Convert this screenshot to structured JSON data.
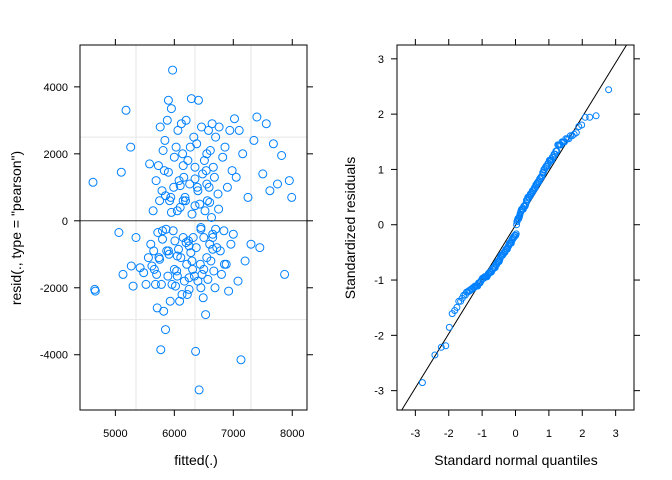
{
  "chart_data": [
    {
      "type": "scatter",
      "xlabel": "fitted(.)",
      "ylabel": "resid(., type = \"pearson\")",
      "xlim": [
        4400,
        8250
      ],
      "ylim": [
        -5650,
        5250
      ],
      "xticks": [
        5000,
        6000,
        7000,
        8000
      ],
      "yticks": [
        -4000,
        -2000,
        0,
        2000,
        4000
      ],
      "xtick_labels": [
        "5000",
        "6000",
        "7000",
        "8000"
      ],
      "ytick_labels": [
        "-4000",
        "-2000",
        "0",
        "2000",
        "4000"
      ],
      "reference_lines": {
        "horizontal": [
          0
        ],
        "grid_h": [
          2500,
          -2950
        ],
        "grid_v": [
          5350,
          6350,
          7300
        ]
      },
      "point_color": "#0080ff",
      "x": [
        4620,
        4650,
        4660,
        5060,
        5100,
        5130,
        5180,
        5260,
        5270,
        5300,
        5350,
        5420,
        5480,
        5520,
        5560,
        5580,
        5600,
        5620,
        5640,
        5650,
        5660,
        5680,
        5690,
        5700,
        5710,
        5720,
        5730,
        5740,
        5750,
        5760,
        5770,
        5780,
        5790,
        5800,
        5810,
        5820,
        5830,
        5840,
        5850,
        5860,
        5870,
        5880,
        5890,
        5900,
        5910,
        5920,
        5930,
        5940,
        5950,
        5960,
        5970,
        5980,
        5990,
        6000,
        6010,
        6020,
        6030,
        6040,
        6050,
        6060,
        6070,
        6080,
        6090,
        6100,
        6110,
        6120,
        6130,
        6140,
        6150,
        6160,
        6170,
        6180,
        6190,
        6200,
        6210,
        6220,
        6230,
        6240,
        6250,
        6260,
        6270,
        6280,
        6290,
        6300,
        6310,
        6320,
        6330,
        6340,
        6350,
        6360,
        6370,
        6380,
        6390,
        6400,
        6410,
        6420,
        6430,
        6440,
        6450,
        6460,
        6470,
        6480,
        6490,
        6500,
        6510,
        6520,
        6530,
        6540,
        6550,
        6560,
        6570,
        6580,
        6590,
        6600,
        6610,
        6620,
        6630,
        6640,
        6650,
        6660,
        6670,
        6680,
        6690,
        6700,
        6720,
        6740,
        6760,
        6780,
        6800,
        6820,
        6840,
        6860,
        6880,
        6900,
        6920,
        6940,
        6960,
        6980,
        7000,
        7020,
        7050,
        7080,
        7100,
        7130,
        7160,
        7200,
        7250,
        7300,
        7350,
        7400,
        7450,
        7500,
        7560,
        7620,
        7680,
        7750,
        7820,
        7870,
        7950,
        7990,
        5900,
        5950,
        6050,
        6150,
        6250,
        6350,
        6450,
        6550,
        6650,
        6750,
        5750,
        5850,
        6000,
        6100,
        6200,
        6300,
        6400,
        6500,
        6600,
        6700,
        5800,
        5900,
        6050,
        6150,
        6250,
        6350,
        6450,
        6550,
        6650,
        6850
      ],
      "y": [
        1150,
        -2050,
        -2100,
        -350,
        1450,
        -1600,
        3300,
        2200,
        -1350,
        -1950,
        -500,
        -1400,
        -1550,
        -1900,
        -1100,
        1700,
        -700,
        -1350,
        300,
        -900,
        -1450,
        -1900,
        1200,
        -1600,
        -2600,
        -350,
        1650,
        -1100,
        600,
        2800,
        -3850,
        -1900,
        900,
        -300,
        2100,
        -2700,
        1500,
        2400,
        -3250,
        -250,
        -900,
        3000,
        -1650,
        3600,
        -1000,
        600,
        -2400,
        700,
        3350,
        -1900,
        4500,
        -300,
        1000,
        1900,
        -600,
        -1950,
        2200,
        -1500,
        300,
        2700,
        -850,
        1200,
        -2400,
        400,
        -1100,
        2900,
        -2200,
        2000,
        -500,
        1300,
        -1800,
        700,
        600,
        3000,
        -1300,
        -2200,
        1800,
        -600,
        -2050,
        1100,
        2200,
        -950,
        3650,
        200,
        -1450,
        -500,
        2500,
        -1650,
        1600,
        -3900,
        -800,
        2300,
        1000,
        -1800,
        3600,
        -5050,
        500,
        -1300,
        -200,
        2800,
        -1600,
        1400,
        -2300,
        -500,
        1800,
        300,
        -2800,
        1500,
        -1100,
        600,
        -1750,
        2700,
        1000,
        -700,
        2100,
        -1200,
        100,
        2900,
        -400,
        1600,
        -1500,
        1300,
        -2000,
        2500,
        -800,
        800,
        2800,
        -900,
        -1600,
        1900,
        -300,
        2200,
        -1300,
        1000,
        -2100,
        2700,
        -700,
        1500,
        -400,
        3050,
        1300,
        -1800,
        2700,
        -4150,
        2000,
        -1200,
        700,
        -700,
        2400,
        3100,
        -800,
        1400,
        2900,
        900,
        2300,
        1100,
        1950,
        -1600,
        1200,
        700,
        -900,
        250,
        -1650,
        1650,
        -750,
        1250,
        -2000,
        2000,
        -500,
        350,
        -1150,
        750,
        -1450,
        1050,
        -650,
        -1200,
        900,
        -1450,
        550,
        -250,
        -550,
        1450,
        -1050,
        600,
        -1700,
        450,
        -250,
        1100,
        -850,
        -1300
      ]
    },
    {
      "type": "scatter",
      "xlabel": "Standard normal quantiles",
      "ylabel": "Standardized residuals",
      "xlim": [
        -3.55,
        3.55
      ],
      "ylim": [
        -3.35,
        3.25
      ],
      "xticks": [
        -3,
        -2,
        -1,
        0,
        1,
        2,
        3
      ],
      "yticks": [
        -3,
        -2,
        -1,
        0,
        1,
        2,
        3
      ],
      "xtick_labels": [
        "-3",
        "-2",
        "-1",
        "0",
        "1",
        "2",
        "3"
      ],
      "ytick_labels": [
        "-3",
        "-2",
        "-1",
        "0",
        "1",
        "2",
        "3"
      ],
      "reference_line": {
        "slope": 0.98,
        "intercept": -0.01
      },
      "point_color": "#0080ff",
      "line_color": "#000000"
    }
  ]
}
